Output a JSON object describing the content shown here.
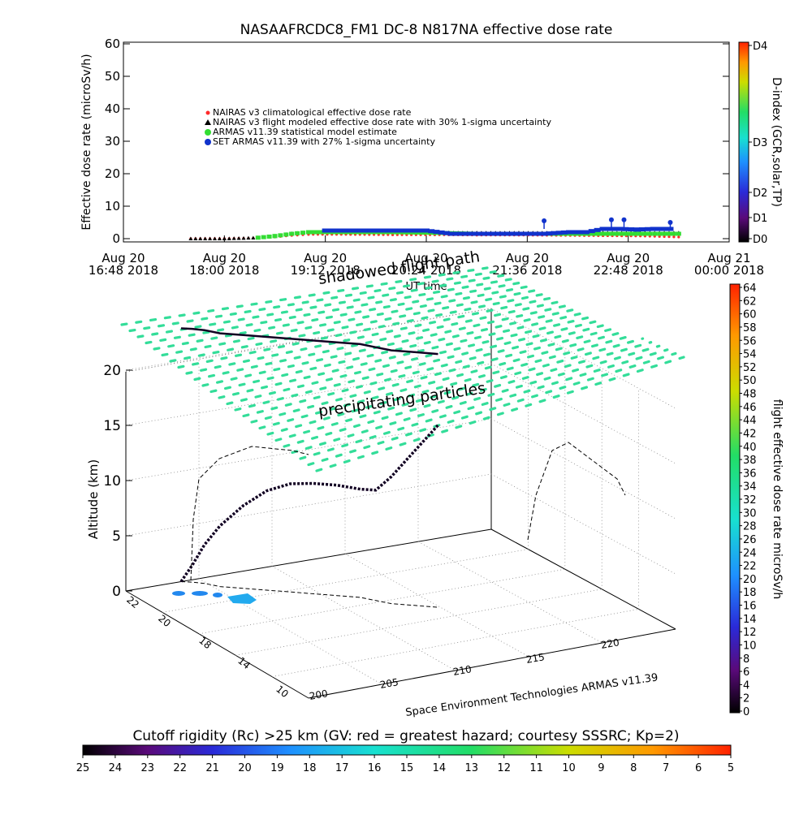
{
  "colors": {
    "nairas_clim": "#ff2a2a",
    "nairas_flight": "#000000",
    "armas_stat": "#33dd33",
    "set_armas": "#1133cc",
    "precip": "#33dd99",
    "path": "#110022",
    "shadow": "#000000"
  },
  "chart_data": [
    {
      "type": "line",
      "title": "NASAAFRCDC8_FM1 DC-8   N817NA effective dose rate",
      "xlabel": "UT time",
      "ylabel": "Effective dose rate  (microSv/h)",
      "ylim": [
        0,
        60
      ],
      "yticks": [
        0,
        10,
        20,
        30,
        40,
        50,
        60
      ],
      "xticks": [
        {
          "l1": "Aug 20",
          "l2": "16:48 2018"
        },
        {
          "l1": "Aug 20",
          "l2": "18:00 2018"
        },
        {
          "l1": "Aug 20",
          "l2": "19:12 2018"
        },
        {
          "l1": "Aug 20",
          "l2": "20:24 2018"
        },
        {
          "l1": "Aug 20",
          "l2": "21:36 2018"
        },
        {
          "l1": "Aug 20",
          "l2": "22:48 2018"
        },
        {
          "l1": "Aug 21",
          "l2": "00:00 2018"
        }
      ],
      "xrange_hours": [
        16.8,
        24.0
      ],
      "legend": [
        "NAIRAS v3 climatological effective dose rate",
        "NAIRAS v3 flight modeled effective dose rate with 30% 1-sigma uncertainty",
        "ARMAS v11.39 statistical model estimate",
        "SET ARMAS v11.39 with 27% 1-sigma uncertainty"
      ],
      "legend_position": "upper-left",
      "grid": false,
      "series": [
        {
          "name": "NAIRAS v3 climatological effective dose rate",
          "x": [
            17.6,
            18.0,
            18.4,
            18.6,
            18.8,
            19.0,
            19.5,
            20.0,
            20.5,
            21.0,
            21.5,
            22.0,
            22.5,
            23.0,
            23.4
          ],
          "y": [
            0.0,
            0.0,
            0.2,
            0.5,
            1.0,
            1.3,
            1.3,
            1.2,
            1.2,
            1.1,
            1.1,
            1.0,
            0.9,
            0.8,
            0.5
          ]
        },
        {
          "name": "NAIRAS v3 flight modeled effective dose rate with 30% 1-sigma uncertainty",
          "x": [
            17.6,
            18.0,
            18.4,
            18.6,
            18.8,
            19.0,
            19.5,
            20.0,
            20.5,
            21.0,
            21.5,
            22.0,
            22.5,
            23.0,
            23.4
          ],
          "y": [
            0.0,
            0.0,
            0.3,
            0.8,
            1.6,
            2.0,
            2.0,
            1.9,
            1.9,
            1.8,
            1.8,
            1.8,
            1.8,
            1.8,
            1.8
          ]
        },
        {
          "name": "ARMAS v11.39 statistical model estimate",
          "x": [
            18.4,
            18.6,
            18.8,
            19.0,
            19.5,
            20.0,
            20.5,
            21.0,
            21.5,
            22.0,
            22.5,
            23.0,
            23.4
          ],
          "y": [
            0.3,
            0.8,
            1.5,
            2.0,
            2.0,
            2.0,
            1.8,
            1.5,
            1.5,
            1.5,
            1.5,
            1.5,
            1.5
          ]
        },
        {
          "name": "SET ARMAS v11.39 with 27% 1-sigma uncertainty",
          "x": [
            19.2,
            19.5,
            19.8,
            20.1,
            20.4,
            20.7,
            21.2,
            21.8,
            22.1,
            22.3,
            22.5,
            22.7,
            22.9,
            23.1,
            23.3
          ],
          "y": [
            2.5,
            2.5,
            2.5,
            2.5,
            2.5,
            1.5,
            1.5,
            1.5,
            2.0,
            2.0,
            3.0,
            3.0,
            2.8,
            3.0,
            3.0
          ]
        }
      ],
      "right_colorbar": {
        "label": "D-index (GCR,solar,TP)",
        "ticks": [
          "D0",
          "D1",
          "D2",
          "D3",
          "D4"
        ]
      }
    },
    {
      "type": "scatter",
      "subtype": "3d-flight-path",
      "zlabel": "Altitude (km)",
      "zlim": [
        0,
        20
      ],
      "zticks": [
        0,
        5,
        10,
        15,
        20
      ],
      "latitude_ticks": [
        "10",
        "14",
        "18",
        "20",
        "22"
      ],
      "longitude_ticks": [
        "200",
        "205",
        "210",
        "215",
        "220"
      ],
      "annotations": [
        "precipitating particles",
        "shadowed flight path"
      ],
      "credit": "Space Environment Technologies ARMAS v11.39",
      "precipitating_particle_layer_km": 20,
      "flight_path": {
        "note": "track values (lon, lat, altitude km)",
        "points": [
          [
            203.5,
            22.0,
            0.0
          ],
          [
            204.0,
            21.8,
            1.5
          ],
          [
            204.5,
            21.5,
            3.5
          ],
          [
            205.0,
            21.0,
            5.5
          ],
          [
            206.0,
            20.5,
            7.5
          ],
          [
            207.0,
            20.0,
            9.0
          ],
          [
            208.0,
            19.5,
            9.8
          ],
          [
            209.0,
            19.0,
            10.0
          ],
          [
            210.0,
            18.5,
            10.0
          ],
          [
            211.0,
            18.0,
            9.8
          ],
          [
            211.5,
            17.5,
            10.0
          ],
          [
            212.0,
            17.0,
            11.5
          ],
          [
            213.0,
            16.5,
            14.0
          ],
          [
            214.0,
            16.0,
            16.5
          ]
        ]
      },
      "right_colorbar": {
        "label": "flight effective dose rate microSv/h",
        "min": 0,
        "max": 64,
        "step": 2
      },
      "bottom_colorbar": {
        "label": "Cutoff rigidity (Rc) >25 km (GV: red = greatest hazard; courtesy SSSRC; Kp=2)",
        "ticks": [
          "25",
          "24",
          "23",
          "22",
          "21",
          "20",
          "19",
          "18",
          "17",
          "16",
          "15",
          "14",
          "13",
          "12",
          "11",
          "10",
          "9",
          "8",
          "7",
          "6",
          "5"
        ]
      }
    }
  ]
}
